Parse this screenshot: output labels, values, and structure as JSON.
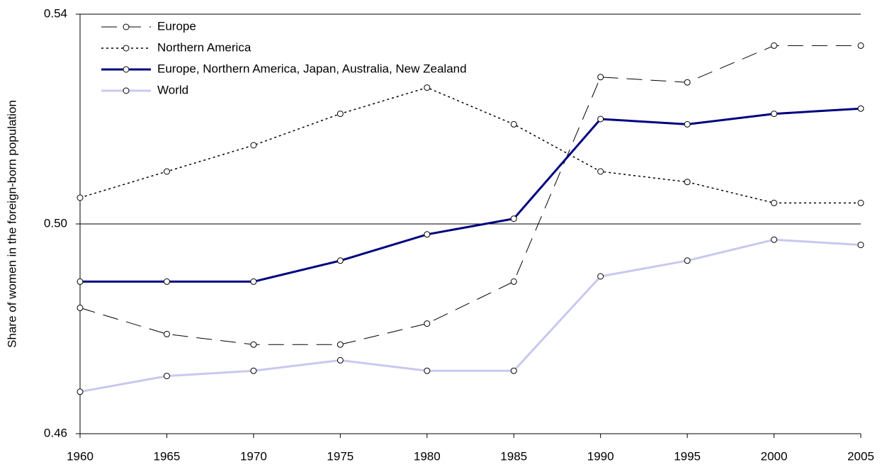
{
  "chart_data": {
    "type": "line",
    "y_label": "Share of women in the foreign-born population",
    "x": [
      1960,
      1965,
      1970,
      1975,
      1980,
      1985,
      1990,
      1995,
      2000,
      2005
    ],
    "xlim": [
      1960,
      2005
    ],
    "xticks": [
      1960,
      1965,
      1970,
      1975,
      1980,
      1985,
      1990,
      1995,
      2000,
      2005
    ],
    "ylim": [
      0.46,
      0.54
    ],
    "yticks": [
      {
        "value": 0.46,
        "label": "0.46"
      },
      {
        "value": 0.5,
        "label": "0.50"
      },
      {
        "value": 0.54,
        "label": "0.54"
      }
    ],
    "grid": true,
    "legend": "upper left",
    "series": [
      {
        "name": "Europe",
        "color": "#000000",
        "line_style": "dashed",
        "line_width": 1,
        "values": [
          0.484,
          0.479,
          0.477,
          0.477,
          0.481,
          0.489,
          0.528,
          0.527,
          0.534,
          0.534
        ]
      },
      {
        "name": "Northern America",
        "color": "#000000",
        "line_style": "dotted",
        "line_width": 1.5,
        "values": [
          0.505,
          0.51,
          0.515,
          0.521,
          0.526,
          0.519,
          0.51,
          0.508,
          0.504,
          0.504
        ]
      },
      {
        "name": "Europe, Northern America, Japan, Australia, New Zealand",
        "color": "#000080",
        "line_style": "solid",
        "line_width": 3,
        "values": [
          0.489,
          0.489,
          0.489,
          0.493,
          0.498,
          0.501,
          0.52,
          0.519,
          0.521,
          0.522
        ]
      },
      {
        "name": "World",
        "color": "#c8c8f0",
        "line_style": "solid",
        "line_width": 3,
        "values": [
          0.468,
          0.471,
          0.472,
          0.474,
          0.472,
          0.472,
          0.49,
          0.493,
          0.497,
          0.496
        ]
      }
    ]
  }
}
